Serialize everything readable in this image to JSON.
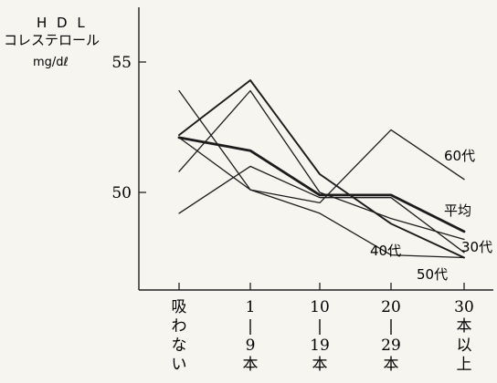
{
  "chart_data": {
    "type": "line",
    "ylabel_lines": [
      "H D L",
      "コレステロール",
      "mg/dℓ"
    ],
    "xlabel": "",
    "ylim": [
      46.6,
      56.6
    ],
    "yticks": [
      50,
      55
    ],
    "categories": [
      [
        "吸",
        "わ",
        "な",
        "い"
      ],
      [
        "1",
        "|",
        "9",
        "本"
      ],
      [
        "10",
        "|",
        "19",
        "本"
      ],
      [
        "20",
        "|",
        "29",
        "本"
      ],
      [
        "30",
        "本",
        "以",
        "上"
      ]
    ],
    "series": [
      {
        "name": "60代",
        "values": [
          52.1,
          50.1,
          49.6,
          52.4,
          50.5
        ],
        "weight": "thin"
      },
      {
        "name": "平均",
        "values": [
          52.1,
          51.6,
          49.9,
          49.9,
          48.5
        ],
        "weight": "thick"
      },
      {
        "name": "30代",
        "values": [
          52.2,
          54.3,
          50.7,
          48.8,
          47.5
        ],
        "weight": "normal"
      },
      {
        "name": "40代",
        "values": [
          49.2,
          51.0,
          49.8,
          49.8,
          47.7
        ],
        "weight": "thin"
      },
      {
        "name": "50代",
        "values": [
          53.9,
          50.1,
          49.2,
          47.6,
          47.5
        ],
        "weight": "thin"
      },
      {
        "name": "",
        "values": [
          50.8,
          53.9,
          50.0,
          49.0,
          48.2
        ],
        "weight": "thin"
      }
    ]
  }
}
